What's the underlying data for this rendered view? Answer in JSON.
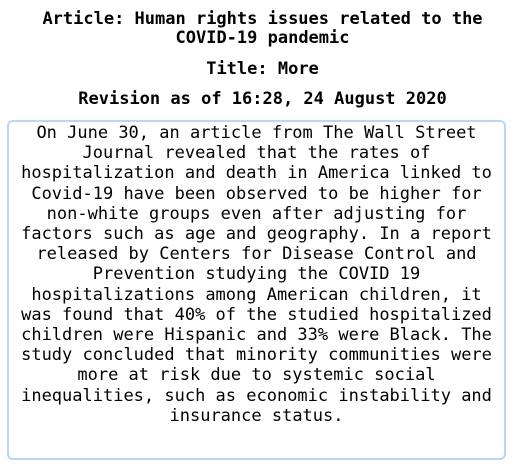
{
  "header": {
    "article": "Article: Human rights issues related to the COVID-19 pandemic",
    "title": "Title: More",
    "revision": "Revision as of 16:28, 24 August 2020"
  },
  "content": {
    "text": "On June 30, an article from The Wall Street Journal revealed that the rates of hospitalization and death in America linked to Covid-19 have been observed to be higher for non-white groups even after adjusting for factors such as age and geography. In a report released by Centers for Disease Control and Prevention studying the COVID 19 hospitalizations among American children, it was found that 40% of the studied hospitalized children were Hispanic and 33% were Black. The study concluded that minority communities were more at risk due to systemic social inequalities, such as economic instability and insurance status."
  },
  "colors": {
    "box_border": "#b9d7f1",
    "text": "#000000",
    "background": "#ffffff"
  }
}
